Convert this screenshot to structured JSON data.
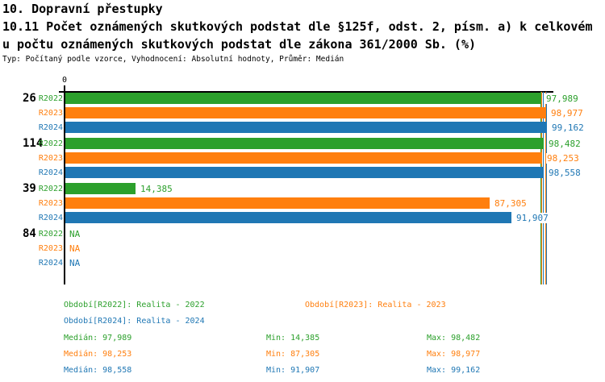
{
  "header": {
    "line1": "10. Dopravní přestupky",
    "line2": "10.11 Počet oznámených skutkových podstat dle §125f, odst. 2, písm. a) k celkovém",
    "line3": "u počtu oznámených skutkových podstat dle zákona 361/2000 Sb. (%)",
    "meta": "Typ: Počítaný podle vzorce, Vyhodnocení: Absolutní hodnoty, Průměr: Medián"
  },
  "chart_data": {
    "type": "bar",
    "orientation": "horizontal-grouped",
    "title": "10.11 Počet oznámených skutkových podstat dle §125f, odst. 2, písm. a) k celkovému počtu oznámených skutkových podstat dle zákona 361/2000 Sb. (%)",
    "axis": {
      "zero_label": "0",
      "xlim": [
        0,
        100.6
      ],
      "value_format": "decimal-comma-percent"
    },
    "series": [
      "R2022",
      "R2023",
      "R2024"
    ],
    "colors": {
      "R2022": "#2CA02C",
      "R2023": "#FF7F0E",
      "R2024": "#1F77B4"
    },
    "groups": [
      {
        "label": "26",
        "values": [
          {
            "series": "R2022",
            "value": 97.989,
            "display": "97,989"
          },
          {
            "series": "R2023",
            "value": 98.977,
            "display": "98,977"
          },
          {
            "series": "R2024",
            "value": 99.162,
            "display": "99,162"
          }
        ]
      },
      {
        "label": "114",
        "values": [
          {
            "series": "R2022",
            "value": 98.482,
            "display": "98,482"
          },
          {
            "series": "R2023",
            "value": 98.253,
            "display": "98,253"
          },
          {
            "series": "R2024",
            "value": 98.558,
            "display": "98,558"
          }
        ]
      },
      {
        "label": "39",
        "values": [
          {
            "series": "R2022",
            "value": 14.385,
            "display": "14,385"
          },
          {
            "series": "R2023",
            "value": 87.305,
            "display": "87,305"
          },
          {
            "series": "R2024",
            "value": 91.907,
            "display": "91,907"
          }
        ]
      },
      {
        "label": "84",
        "values": [
          {
            "series": "R2022",
            "value": null,
            "display": "NA"
          },
          {
            "series": "R2023",
            "value": null,
            "display": "NA"
          },
          {
            "series": "R2024",
            "value": null,
            "display": "NA"
          }
        ]
      }
    ],
    "series_stats": [
      {
        "series": "R2022",
        "median": 97.989,
        "min": 14.385,
        "max": 98.482
      },
      {
        "series": "R2023",
        "median": 98.253,
        "min": 87.305,
        "max": 98.977
      },
      {
        "series": "R2024",
        "median": 98.558,
        "min": 91.907,
        "max": 99.162
      }
    ],
    "marker_lines": "median-and-max-per-series",
    "legend_position": "bottom"
  },
  "legend": {
    "r2022": "Období[R2022]: Realita - 2022",
    "r2023": "Období[R2023]: Realita - 2023",
    "r2024": "Období[R2024]: Realita - 2024"
  },
  "stats_panel": {
    "rows": [
      {
        "series": "R2022",
        "median": "Medián: 97,989",
        "min": "Min: 14,385",
        "max": "Max: 98,482"
      },
      {
        "series": "R2023",
        "median": "Medián: 98,253",
        "min": "Min: 87,305",
        "max": "Max: 98,977"
      },
      {
        "series": "R2024",
        "median": "Medián: 98,558",
        "min": "Min: 91,907",
        "max": "Max: 99,162"
      }
    ]
  }
}
